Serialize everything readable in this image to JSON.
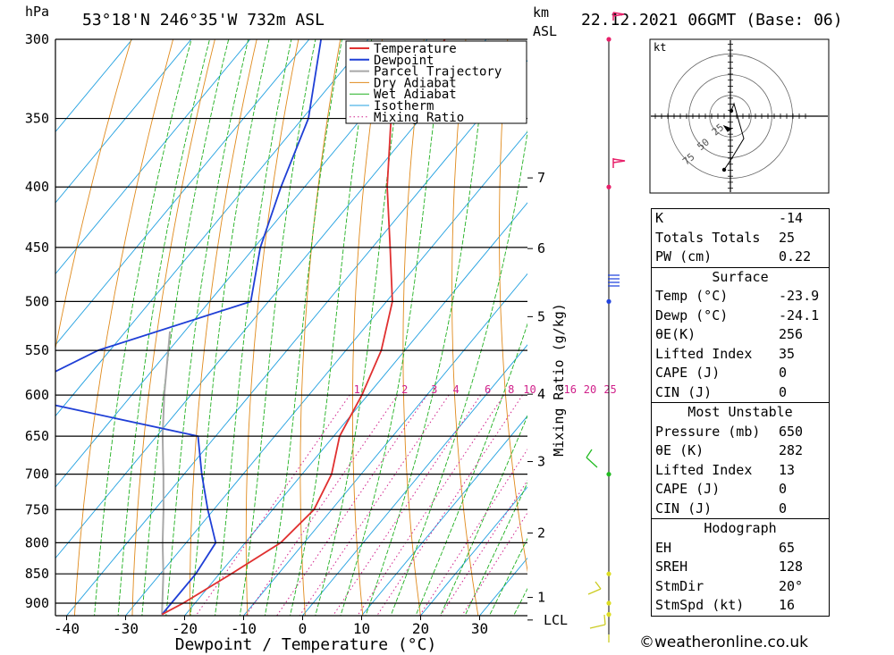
{
  "header": {
    "hpa_unit": "hPa",
    "location": "53°18'N  246°35'W  732m  ASL",
    "km_unit": "km",
    "asl_label": "ASL",
    "datetime": "22.12.2021  06GMT  (Base: 06)"
  },
  "chart_data": {
    "type": "skew-t log-p",
    "xlabel": "Dewpoint / Temperature (°C)",
    "ylabel_right": "Mixing Ratio (g/kg)",
    "xlim": [
      -42,
      38
    ],
    "pressure_range": [
      300,
      920
    ],
    "pressure_ticks": [
      300,
      350,
      400,
      450,
      500,
      550,
      600,
      650,
      700,
      750,
      800,
      850,
      900
    ],
    "temperature_ticks": [
      -40,
      -30,
      -20,
      -10,
      0,
      10,
      20,
      30
    ],
    "km_ticks": [
      {
        "label": "7",
        "p": 393
      },
      {
        "label": "6",
        "p": 451
      },
      {
        "label": "5",
        "p": 515
      },
      {
        "label": "4",
        "p": 599
      },
      {
        "label": "3",
        "p": 683
      },
      {
        "label": "2",
        "p": 785
      },
      {
        "label": "1",
        "p": 890
      },
      {
        "label": "LCL",
        "p": 930
      }
    ],
    "mixing_ratio_labels": [
      "1",
      "2",
      "3",
      "4",
      "6",
      "8",
      "10",
      "16",
      "20",
      "25"
    ],
    "mixing_ratio_values": [
      1,
      2,
      3,
      4,
      6,
      8,
      10,
      16,
      20,
      25
    ],
    "legend": [
      "Temperature",
      "Dewpoint",
      "Parcel Trajectory",
      "Dry Adiabat",
      "Wet Adiabat",
      "Isotherm",
      "Mixing Ratio"
    ],
    "temperature_profile": [
      {
        "p": 300,
        "t": -57
      },
      {
        "p": 350,
        "t": -55
      },
      {
        "p": 400,
        "t": -46
      },
      {
        "p": 450,
        "t": -37
      },
      {
        "p": 500,
        "t": -29
      },
      {
        "p": 550,
        "t": -24
      },
      {
        "p": 600,
        "t": -21
      },
      {
        "p": 650,
        "t": -19
      },
      {
        "p": 700,
        "t": -15
      },
      {
        "p": 750,
        "t": -13
      },
      {
        "p": 800,
        "t": -14
      },
      {
        "p": 850,
        "t": -18
      },
      {
        "p": 900,
        "t": -22
      },
      {
        "p": 920,
        "t": -24
      }
    ],
    "dewpoint_profile": [
      {
        "p": 300,
        "t": -78
      },
      {
        "p": 350,
        "t": -69
      },
      {
        "p": 400,
        "t": -64
      },
      {
        "p": 450,
        "t": -59
      },
      {
        "p": 500,
        "t": -53
      },
      {
        "p": 550,
        "t": -72
      },
      {
        "p": 600,
        "t": -81
      },
      {
        "p": 650,
        "t": -43
      },
      {
        "p": 700,
        "t": -37
      },
      {
        "p": 750,
        "t": -31
      },
      {
        "p": 800,
        "t": -25
      },
      {
        "p": 850,
        "t": -24
      },
      {
        "p": 900,
        "t": -24
      },
      {
        "p": 920,
        "t": -24
      }
    ],
    "parcel_profile": [
      {
        "p": 920,
        "t": -24
      },
      {
        "p": 850,
        "t": -29.5
      },
      {
        "p": 800,
        "t": -34
      },
      {
        "p": 750,
        "t": -38.5
      },
      {
        "p": 700,
        "t": -43.5
      },
      {
        "p": 650,
        "t": -49
      },
      {
        "p": 600,
        "t": -54.5
      },
      {
        "p": 530,
        "t": -62.5
      }
    ],
    "wind_barbs": [
      {
        "p": 300,
        "color": "#e8206a"
      },
      {
        "p": 400,
        "color": "#e8206a"
      },
      {
        "p": 500,
        "color": "#2244dd"
      },
      {
        "p": 700,
        "color": "#22bb22"
      },
      {
        "p": 850,
        "color": "#dddd22"
      },
      {
        "p": 900,
        "color": "#dddd22"
      },
      {
        "p": 920,
        "color": "#dddd22"
      }
    ],
    "hodograph": {
      "unit": "kt",
      "ring_labels": [
        "25",
        "50",
        "75"
      ],
      "ring_values": [
        25,
        50,
        75
      ]
    }
  },
  "colors": {
    "temperature": "#e03030",
    "dewpoint": "#1f3fd6",
    "parcel": "#a8a8a8",
    "dry_adiabat": "#e08a1c",
    "wet_adiabat": "#20b020",
    "isotherm": "#20a0e0",
    "mixing_ratio": "#d0208a"
  },
  "table": {
    "k_label": "K",
    "k_value": "-14",
    "tt_label": "Totals Totals",
    "tt_value": "25",
    "pw_label": "PW (cm)",
    "pw_value": "0.22",
    "surface_title": "Surface",
    "s_temp_label": "Temp (°C)",
    "s_temp_value": "-23.9",
    "s_dewp_label": "Dewp (°C)",
    "s_dewp_value": "-24.1",
    "s_theta_label": "θE(K)",
    "s_theta_value": "256",
    "s_li_label": "Lifted Index",
    "s_li_value": "35",
    "s_cape_label": "CAPE (J)",
    "s_cape_value": "0",
    "s_cin_label": "CIN (J)",
    "s_cin_value": "0",
    "mu_title": "Most Unstable",
    "mu_pres_label": "Pressure (mb)",
    "mu_pres_value": "650",
    "mu_theta_label": "θE (K)",
    "mu_theta_value": "282",
    "mu_li_label": "Lifted Index",
    "mu_li_value": "13",
    "mu_cape_label": "CAPE (J)",
    "mu_cape_value": "0",
    "mu_cin_label": "CIN (J)",
    "mu_cin_value": "0",
    "hodo_title": "Hodograph",
    "eh_label": "EH",
    "eh_value": "65",
    "sreh_label": "SREH",
    "sreh_value": "128",
    "stmdir_label": "StmDir",
    "stmdir_value": "20°",
    "stmspd_label": "StmSpd (kt)",
    "stmspd_value": "16"
  },
  "footer": {
    "credit": "©weatheronline.co.uk"
  }
}
